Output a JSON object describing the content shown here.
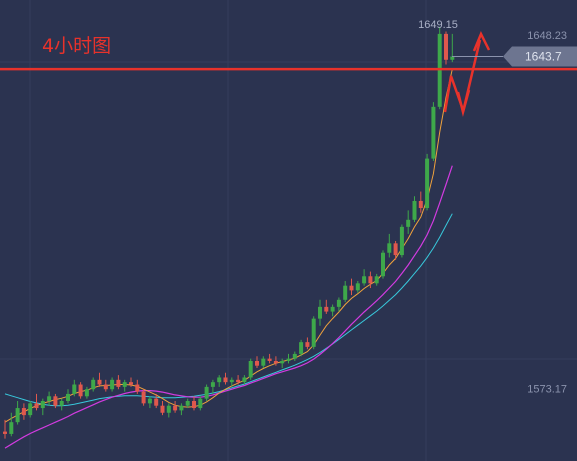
{
  "chart_data": {
    "type": "candlestick",
    "title": "4小时图",
    "ylim": [
      1562,
      1654
    ],
    "y_ticks": [
      {
        "value": 1648.23,
        "label": "1648.23"
      },
      {
        "value": 1573.17,
        "label": "1573.17"
      }
    ],
    "high_label": {
      "value": 1649.15,
      "text": "1649.15"
    },
    "current_price": {
      "value": 1643.7,
      "text": "1643.7"
    },
    "resistance_level": 1641.0,
    "colors": {
      "background": "#2b3350",
      "grid": "#353e5c",
      "up": "#3ea84a",
      "down": "#e0584d",
      "ma_short": "#f0a23c",
      "ma_mid": "#d23be0",
      "ma_long": "#38c9dc",
      "annotation": "#e8322b",
      "price_tag": "#6d7590"
    },
    "candles": [
      [
        1564.0,
        1566.5,
        1562.5,
        1563.5
      ],
      [
        1563.5,
        1568.0,
        1563.0,
        1566.0
      ],
      [
        1566.0,
        1570.5,
        1565.5,
        1569.0
      ],
      [
        1569.0,
        1570.0,
        1566.5,
        1567.5
      ],
      [
        1567.5,
        1570.5,
        1567.0,
        1570.0
      ],
      [
        1570.0,
        1572.0,
        1568.5,
        1569.0
      ],
      [
        1569.0,
        1571.0,
        1567.5,
        1570.5
      ],
      [
        1570.5,
        1572.5,
        1569.5,
        1571.5
      ],
      [
        1571.5,
        1572.0,
        1569.0,
        1569.5
      ],
      [
        1569.5,
        1571.0,
        1568.5,
        1570.5
      ],
      [
        1570.5,
        1573.0,
        1570.0,
        1572.0
      ],
      [
        1572.0,
        1575.0,
        1571.5,
        1574.0
      ],
      [
        1574.0,
        1574.5,
        1571.0,
        1571.5
      ],
      [
        1571.5,
        1573.5,
        1571.0,
        1573.0
      ],
      [
        1573.0,
        1575.5,
        1572.5,
        1575.0
      ],
      [
        1575.0,
        1576.5,
        1573.5,
        1574.0
      ],
      [
        1574.0,
        1575.0,
        1572.5,
        1573.0
      ],
      [
        1573.0,
        1575.5,
        1572.5,
        1575.0
      ],
      [
        1575.0,
        1576.0,
        1573.0,
        1573.5
      ],
      [
        1573.5,
        1575.0,
        1572.5,
        1574.5
      ],
      [
        1574.5,
        1575.5,
        1573.5,
        1574.0
      ],
      [
        1574.0,
        1575.0,
        1572.0,
        1572.5
      ],
      [
        1572.5,
        1573.0,
        1569.5,
        1570.0
      ],
      [
        1570.0,
        1571.5,
        1569.0,
        1571.0
      ],
      [
        1571.0,
        1572.0,
        1569.0,
        1569.5
      ],
      [
        1569.5,
        1570.5,
        1567.5,
        1568.0
      ],
      [
        1568.0,
        1570.0,
        1567.0,
        1569.5
      ],
      [
        1569.5,
        1570.5,
        1568.0,
        1568.5
      ],
      [
        1568.5,
        1570.0,
        1567.5,
        1569.5
      ],
      [
        1569.5,
        1571.0,
        1569.0,
        1570.5
      ],
      [
        1570.5,
        1571.5,
        1568.5,
        1569.0
      ],
      [
        1569.0,
        1571.5,
        1568.5,
        1571.0
      ],
      [
        1571.0,
        1574.0,
        1570.5,
        1573.5
      ],
      [
        1573.5,
        1575.0,
        1572.0,
        1574.5
      ],
      [
        1574.5,
        1576.0,
        1573.5,
        1575.5
      ],
      [
        1575.5,
        1576.5,
        1574.0,
        1574.5
      ],
      [
        1574.5,
        1575.5,
        1573.5,
        1575.0
      ],
      [
        1575.0,
        1576.0,
        1574.0,
        1574.5
      ],
      [
        1574.5,
        1576.0,
        1574.0,
        1575.5
      ],
      [
        1575.5,
        1579.5,
        1575.0,
        1579.0
      ],
      [
        1579.0,
        1580.0,
        1577.5,
        1578.0
      ],
      [
        1578.0,
        1580.0,
        1577.5,
        1579.5
      ],
      [
        1579.5,
        1580.5,
        1578.5,
        1579.0
      ],
      [
        1579.0,
        1580.0,
        1578.0,
        1578.5
      ],
      [
        1578.5,
        1579.5,
        1577.5,
        1579.0
      ],
      [
        1579.0,
        1580.5,
        1578.5,
        1579.5
      ],
      [
        1579.5,
        1581.0,
        1579.0,
        1580.5
      ],
      [
        1580.5,
        1583.5,
        1580.0,
        1583.0
      ],
      [
        1583.0,
        1584.0,
        1581.5,
        1582.0
      ],
      [
        1582.0,
        1588.5,
        1581.5,
        1588.0
      ],
      [
        1588.0,
        1592.0,
        1586.5,
        1590.5
      ],
      [
        1590.5,
        1592.0,
        1589.0,
        1589.5
      ],
      [
        1589.5,
        1591.0,
        1588.5,
        1590.5
      ],
      [
        1590.5,
        1592.5,
        1589.5,
        1592.0
      ],
      [
        1592.0,
        1596.0,
        1591.5,
        1595.0
      ],
      [
        1595.0,
        1596.5,
        1593.0,
        1594.0
      ],
      [
        1594.0,
        1596.0,
        1593.5,
        1595.5
      ],
      [
        1595.5,
        1598.5,
        1595.0,
        1597.0
      ],
      [
        1597.0,
        1598.0,
        1594.5,
        1595.5
      ],
      [
        1595.5,
        1597.5,
        1595.0,
        1597.0
      ],
      [
        1597.0,
        1602.5,
        1596.5,
        1602.0
      ],
      [
        1602.0,
        1606.0,
        1601.0,
        1604.0
      ],
      [
        1604.0,
        1604.5,
        1600.5,
        1601.5
      ],
      [
        1601.5,
        1608.0,
        1601.0,
        1607.5
      ],
      [
        1607.5,
        1611.0,
        1606.0,
        1609.0
      ],
      [
        1609.0,
        1614.0,
        1608.5,
        1613.0
      ],
      [
        1613.0,
        1615.0,
        1610.5,
        1611.5
      ],
      [
        1611.5,
        1623.0,
        1611.0,
        1622.0
      ],
      [
        1622.0,
        1634.0,
        1621.5,
        1633.0
      ],
      [
        1633.0,
        1650.0,
        1632.5,
        1648.5
      ],
      [
        1648.5,
        1649.0,
        1642.0,
        1643.0
      ],
      [
        1643.0,
        1648.5,
        1642.5,
        1643.7
      ]
    ],
    "ma_short": [
      1566.0,
      1566.8,
      1567.5,
      1568.2,
      1568.9,
      1569.5,
      1570.0,
      1570.4,
      1570.8,
      1571.1,
      1571.5,
      1572.1,
      1572.5,
      1572.8,
      1573.3,
      1573.7,
      1573.8,
      1573.9,
      1574.0,
      1574.0,
      1573.9,
      1573.6,
      1573.0,
      1572.4,
      1571.8,
      1571.0,
      1570.2,
      1569.6,
      1569.3,
      1569.2,
      1569.3,
      1569.6,
      1570.3,
      1571.2,
      1572.2,
      1573.0,
      1573.7,
      1574.3,
      1574.9,
      1575.8,
      1576.7,
      1577.4,
      1578.0,
      1578.5,
      1578.9,
      1579.2,
      1579.6,
      1580.3,
      1581.0,
      1582.4,
      1584.5,
      1586.5,
      1588.0,
      1589.4,
      1591.0,
      1592.3,
      1593.3,
      1594.4,
      1595.3,
      1596.1,
      1597.6,
      1599.4,
      1600.8,
      1602.9,
      1605.0,
      1607.5,
      1609.6,
      1613.3,
      1618.8,
      1627.6,
      1635.0,
      1641.0
    ],
    "ma_mid": [
      1560.5,
      1561.3,
      1562.1,
      1562.9,
      1563.6,
      1564.2,
      1564.8,
      1565.4,
      1566.0,
      1566.6,
      1567.2,
      1567.9,
      1568.5,
      1569.1,
      1569.7,
      1570.3,
      1570.8,
      1571.3,
      1571.7,
      1572.1,
      1572.4,
      1572.6,
      1572.7,
      1572.7,
      1572.6,
      1572.4,
      1572.1,
      1571.8,
      1571.6,
      1571.4,
      1571.3,
      1571.3,
      1571.5,
      1571.8,
      1572.2,
      1572.6,
      1573.0,
      1573.4,
      1573.8,
      1574.3,
      1574.8,
      1575.3,
      1575.8,
      1576.3,
      1576.7,
      1577.1,
      1577.5,
      1578.0,
      1578.6,
      1579.4,
      1580.4,
      1581.5,
      1582.7,
      1584.0,
      1585.4,
      1586.8,
      1588.1,
      1589.4,
      1590.6,
      1591.8,
      1593.1,
      1594.5,
      1595.9,
      1597.6,
      1599.4,
      1601.4,
      1603.4,
      1605.8,
      1608.8,
      1612.6,
      1616.5,
      1620.5
    ],
    "ma_long": [
      1572.0,
      1571.6,
      1571.2,
      1570.8,
      1570.4,
      1570.1,
      1569.8,
      1569.6,
      1569.5,
      1569.5,
      1569.6,
      1569.8,
      1570.1,
      1570.4,
      1570.7,
      1571.0,
      1571.2,
      1571.4,
      1571.5,
      1571.6,
      1571.6,
      1571.6,
      1571.5,
      1571.4,
      1571.3,
      1571.2,
      1571.2,
      1571.2,
      1571.3,
      1571.4,
      1571.5,
      1571.7,
      1571.9,
      1572.2,
      1572.5,
      1572.9,
      1573.3,
      1573.7,
      1574.1,
      1574.6,
      1575.1,
      1575.6,
      1576.1,
      1576.6,
      1577.1,
      1577.6,
      1578.1,
      1578.7,
      1579.3,
      1580.0,
      1580.8,
      1581.7,
      1582.6,
      1583.6,
      1584.6,
      1585.6,
      1586.6,
      1587.6,
      1588.6,
      1589.6,
      1590.7,
      1591.9,
      1593.1,
      1594.5,
      1596.0,
      1597.6,
      1599.2,
      1601.0,
      1603.0,
      1605.3,
      1607.8,
      1610.3
    ]
  }
}
